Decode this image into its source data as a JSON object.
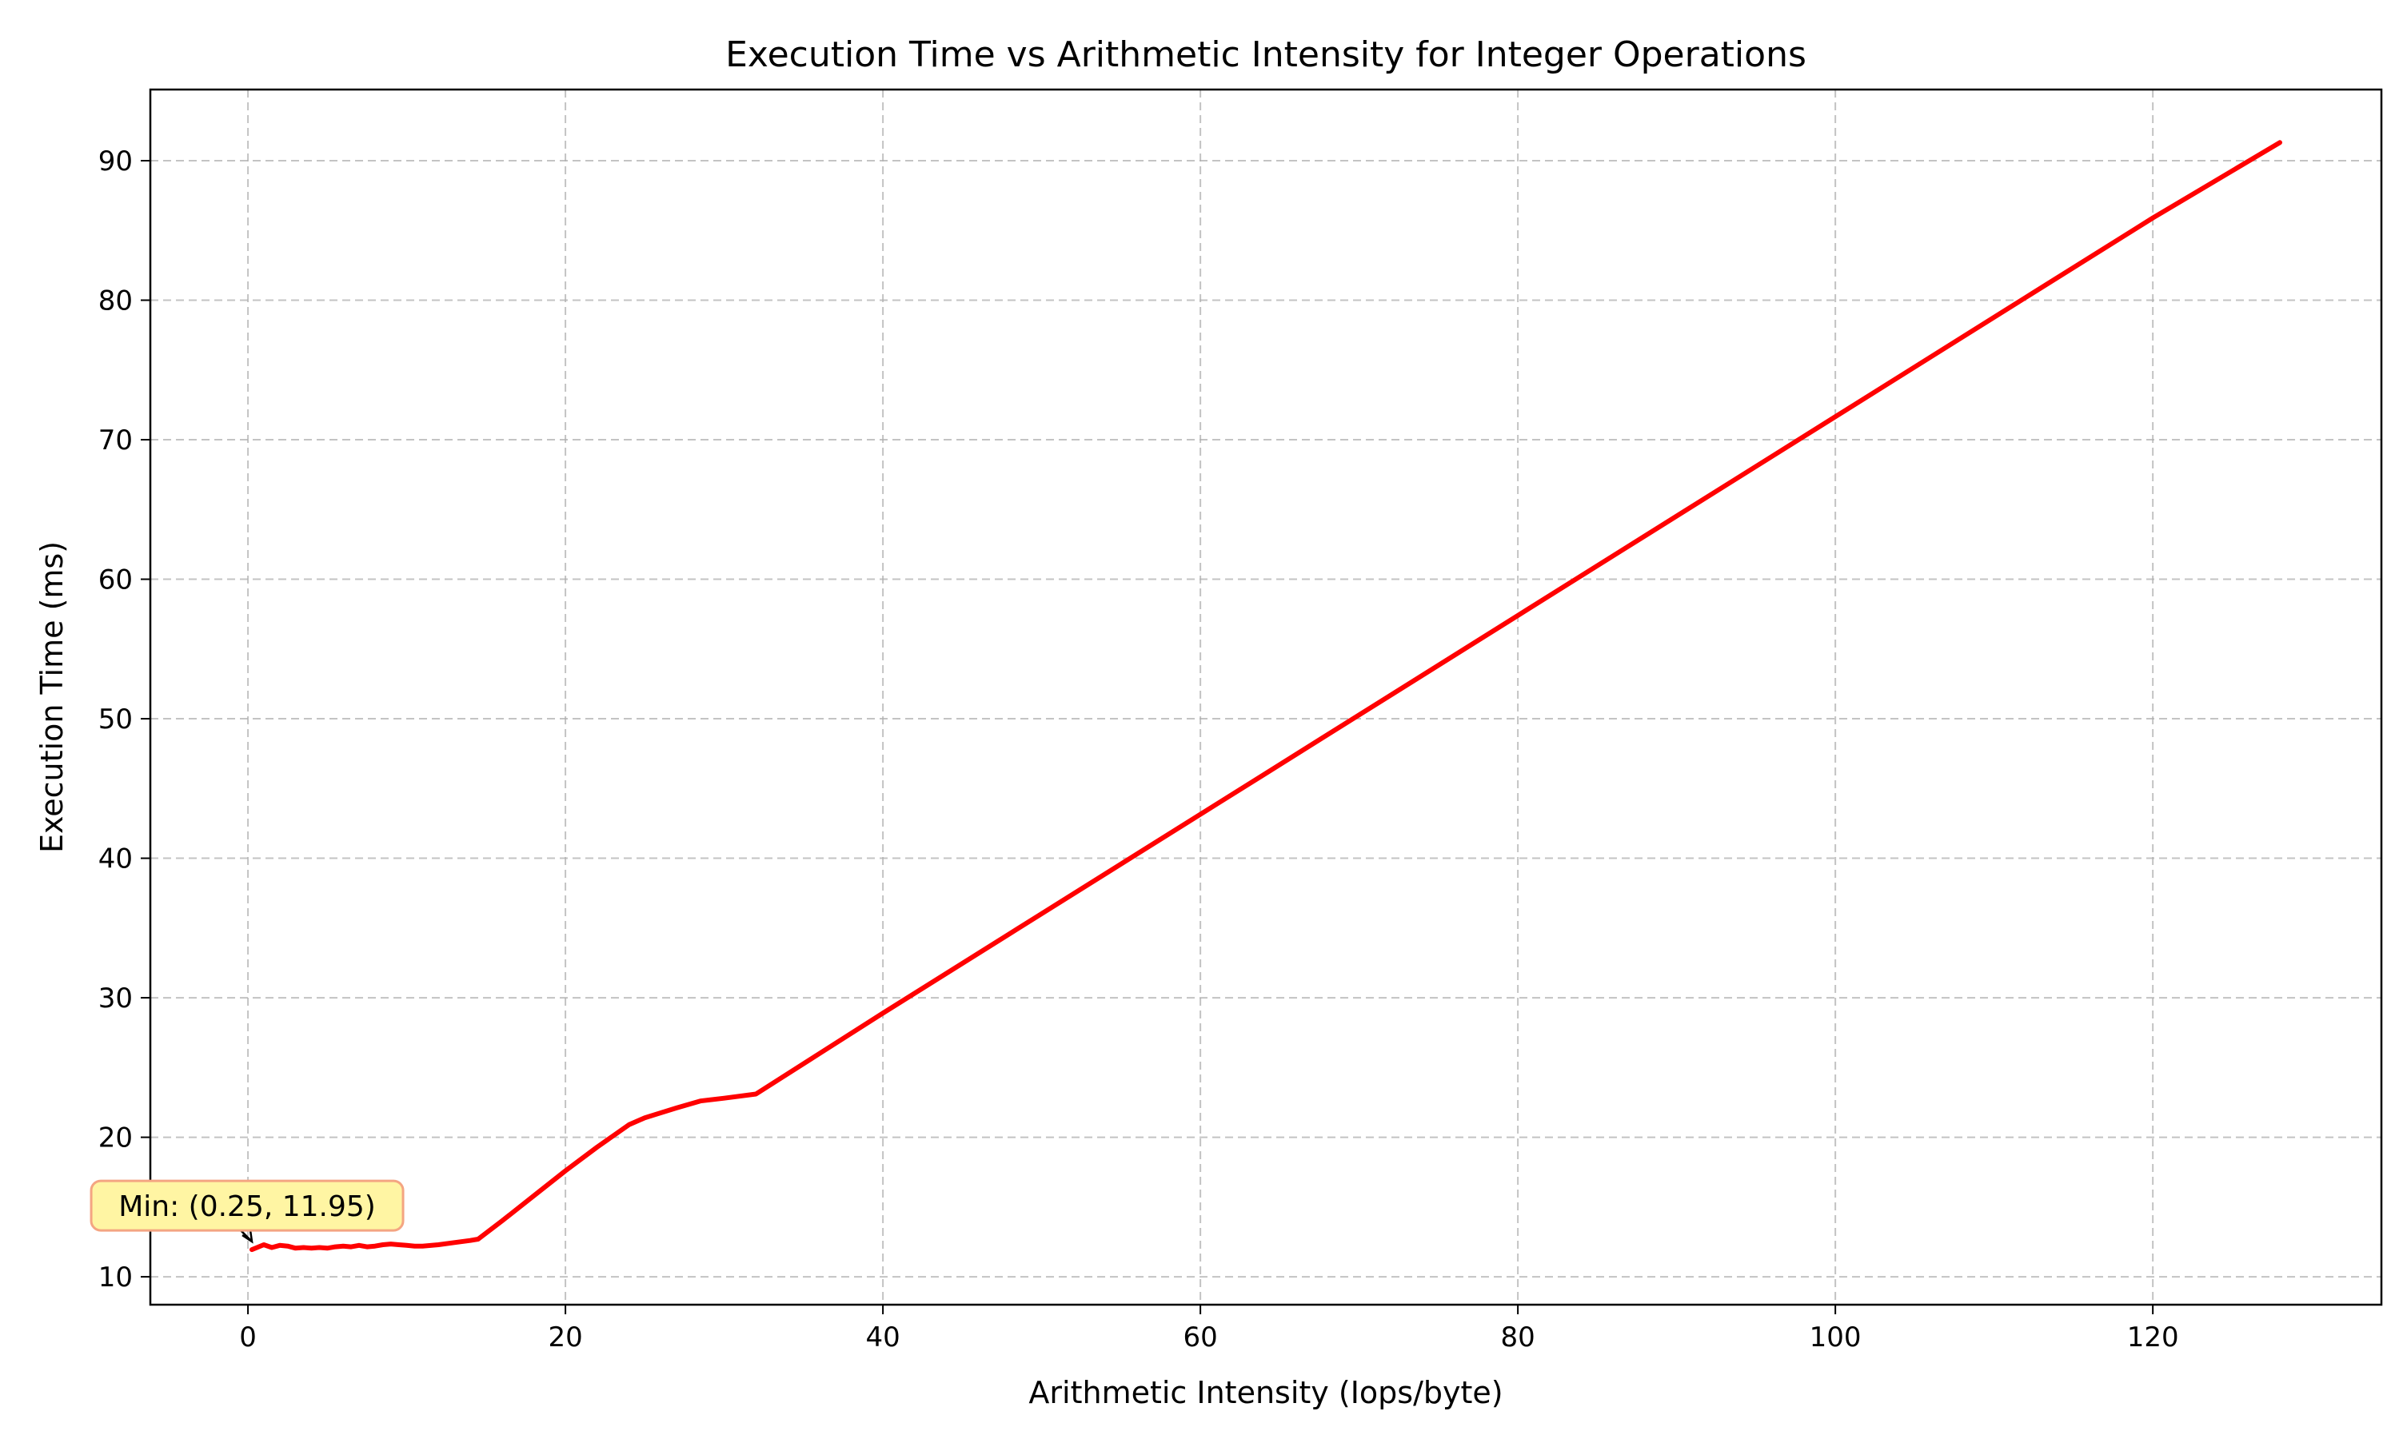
{
  "chart_data": {
    "type": "line",
    "title": "Execution Time vs Arithmetic Intensity for Integer Operations",
    "xlabel": "Arithmetic Intensity (Iops/byte)",
    "ylabel": "Execution Time (ms)",
    "xlim": [
      -6.15,
      134.4
    ],
    "ylim": [
      8.0,
      95.1
    ],
    "xticks": [
      0,
      20,
      40,
      60,
      80,
      100,
      120
    ],
    "yticks": [
      10,
      20,
      30,
      40,
      50,
      60,
      70,
      80,
      90
    ],
    "grid": true,
    "series": [
      {
        "color": "#ff0000",
        "x": [
          0.25,
          1.0,
          1.5,
          2.0,
          2.5,
          3.0,
          3.5,
          4.0,
          4.5,
          5.0,
          5.5,
          6.0,
          6.5,
          7.0,
          7.5,
          8.0,
          8.5,
          9.0,
          9.5,
          10.0,
          10.5,
          11.0,
          12.0,
          13.0,
          14.0,
          14.5,
          16.0,
          18.0,
          20.0,
          22.0,
          24.0,
          25.0,
          27.0,
          28.5,
          30.0,
          32.0,
          36.0,
          40.0,
          48.0,
          56.0,
          64.0,
          72.0,
          80.0,
          88.0,
          96.0,
          104.0,
          112.0,
          120.0,
          128.0
        ],
        "y": [
          11.95,
          12.3,
          12.1,
          12.25,
          12.2,
          12.05,
          12.1,
          12.05,
          12.1,
          12.05,
          12.15,
          12.2,
          12.15,
          12.25,
          12.15,
          12.2,
          12.3,
          12.35,
          12.3,
          12.25,
          12.2,
          12.2,
          12.3,
          12.45,
          12.6,
          12.7,
          14.0,
          15.8,
          17.6,
          19.3,
          20.9,
          21.4,
          22.1,
          22.6,
          22.8,
          23.1,
          26.0,
          28.9,
          34.6,
          40.3,
          46.0,
          51.7,
          57.4,
          63.1,
          68.8,
          74.5,
          80.2,
          85.9,
          91.3
        ]
      }
    ],
    "annotations": [
      {
        "text": "Min: (0.25, 11.95)",
        "x": 0.25,
        "y": 11.95
      }
    ]
  },
  "colors": {
    "line": "#ff0000",
    "annotation_fill": "#fff5a3",
    "annotation_edge": "#f4a582"
  }
}
